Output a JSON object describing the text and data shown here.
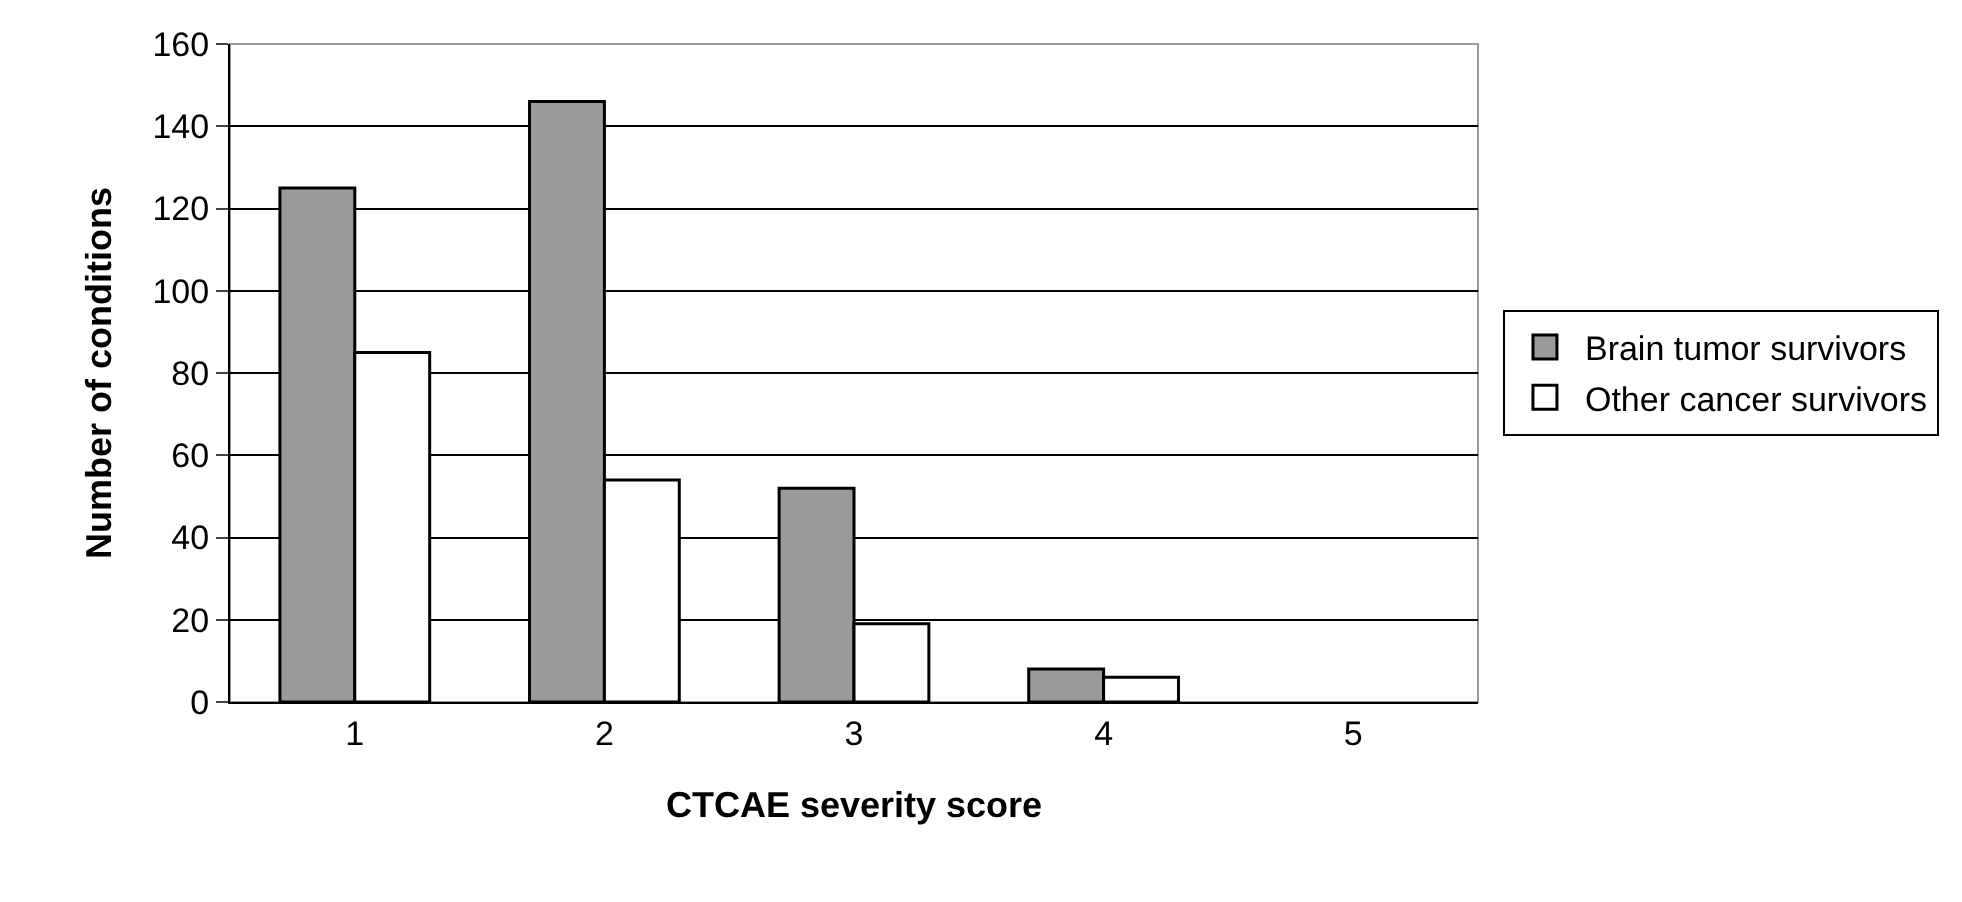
{
  "chart_data": {
    "type": "bar",
    "xlabel": "CTCAE severity score",
    "ylabel": "Number of conditions",
    "categories": [
      "1",
      "2",
      "3",
      "4",
      "5"
    ],
    "series": [
      {
        "name": "Brain tumor survivors",
        "color": "#9a9a9a",
        "values": [
          125,
          146,
          52,
          8,
          0
        ]
      },
      {
        "name": "Other cancer survivors",
        "color": "#ffffff",
        "values": [
          85,
          54,
          19,
          6,
          0
        ]
      }
    ],
    "ylim": [
      0,
      160
    ],
    "yticks": [
      0,
      20,
      40,
      60,
      80,
      100,
      120,
      140,
      160
    ],
    "grid": "y",
    "legend": "right"
  }
}
